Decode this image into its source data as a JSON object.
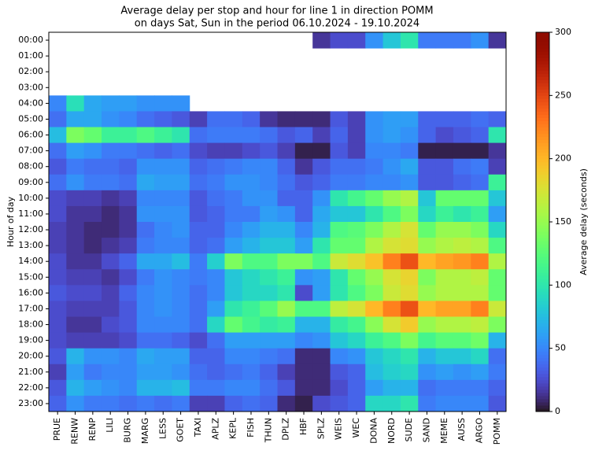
{
  "chart_data": {
    "type": "heatmap",
    "title": "Average delay per stop and hour for line 1 in direction POMM",
    "subtitle": "on days Sat, Sun in the period 06.10.2024 - 19.10.2024",
    "y_label": "Hour of day",
    "colorbar_label": "Average delay (seconds)",
    "colormap": "turbo",
    "clim": [
      0,
      300
    ],
    "cticks": [
      0,
      50,
      100,
      150,
      200,
      250,
      300
    ],
    "x_categories": [
      "PRUE",
      "RENW",
      "RENP",
      "LILI",
      "BURG",
      "MARG",
      "LESS",
      "GOET",
      "TAXI",
      "APLZ",
      "KEPL",
      "FISH",
      "THUN",
      "DPLZ",
      "HBF",
      "SPLZ",
      "WEIS",
      "WEC",
      "DONA",
      "NORD",
      "SUDE",
      "SAND",
      "MEME",
      "AUSS",
      "ARGO",
      "POMM"
    ],
    "y_categories": [
      "00:00",
      "01:00",
      "02:00",
      "03:00",
      "04:00",
      "05:00",
      "06:00",
      "07:00",
      "08:00",
      "09:00",
      "10:00",
      "11:00",
      "12:00",
      "13:00",
      "14:00",
      "15:00",
      "16:00",
      "17:00",
      "18:00",
      "19:00",
      "20:00",
      "21:00",
      "22:00",
      "23:00"
    ],
    "values": [
      [
        null,
        null,
        null,
        null,
        null,
        null,
        null,
        null,
        null,
        null,
        null,
        null,
        null,
        null,
        null,
        15,
        25,
        25,
        55,
        80,
        100,
        45,
        45,
        45,
        55,
        15
      ],
      [
        null,
        null,
        null,
        null,
        null,
        null,
        null,
        null,
        null,
        null,
        null,
        null,
        null,
        null,
        null,
        null,
        null,
        null,
        null,
        null,
        null,
        null,
        null,
        null,
        null,
        null
      ],
      [
        null,
        null,
        null,
        null,
        null,
        null,
        null,
        null,
        null,
        null,
        null,
        null,
        null,
        null,
        null,
        null,
        null,
        null,
        null,
        null,
        null,
        null,
        null,
        null,
        null,
        null
      ],
      [
        null,
        null,
        null,
        null,
        null,
        null,
        null,
        null,
        null,
        null,
        null,
        null,
        null,
        null,
        null,
        null,
        null,
        null,
        null,
        null,
        null,
        null,
        null,
        null,
        null,
        null
      ],
      [
        50,
        95,
        65,
        60,
        60,
        55,
        55,
        55,
        null,
        null,
        null,
        null,
        null,
        null,
        null,
        null,
        null,
        null,
        null,
        null,
        null,
        null,
        null,
        null,
        null,
        null
      ],
      [
        40,
        65,
        65,
        55,
        50,
        40,
        35,
        30,
        20,
        40,
        40,
        35,
        15,
        10,
        10,
        10,
        30,
        20,
        55,
        60,
        60,
        35,
        35,
        35,
        40,
        35
      ],
      [
        75,
        140,
        130,
        110,
        110,
        120,
        110,
        100,
        40,
        45,
        45,
        45,
        40,
        30,
        35,
        20,
        35,
        20,
        55,
        60,
        55,
        35,
        25,
        30,
        35,
        100
      ],
      [
        40,
        60,
        55,
        45,
        45,
        40,
        35,
        40,
        25,
        20,
        20,
        25,
        30,
        20,
        5,
        5,
        30,
        20,
        50,
        50,
        45,
        5,
        5,
        5,
        5,
        15
      ],
      [
        30,
        45,
        40,
        40,
        35,
        55,
        55,
        55,
        35,
        40,
        45,
        50,
        50,
        35,
        15,
        30,
        40,
        40,
        45,
        55,
        65,
        30,
        30,
        40,
        45,
        20
      ],
      [
        40,
        55,
        45,
        45,
        40,
        65,
        60,
        60,
        40,
        45,
        55,
        55,
        50,
        40,
        30,
        35,
        45,
        45,
        50,
        50,
        55,
        30,
        30,
        35,
        40,
        110
      ],
      [
        25,
        20,
        20,
        15,
        20,
        50,
        50,
        50,
        30,
        40,
        45,
        55,
        55,
        35,
        35,
        55,
        100,
        115,
        130,
        150,
        160,
        80,
        130,
        130,
        130,
        80
      ],
      [
        25,
        15,
        15,
        10,
        15,
        55,
        55,
        55,
        30,
        35,
        45,
        45,
        60,
        55,
        35,
        65,
        80,
        80,
        100,
        120,
        140,
        90,
        110,
        100,
        110,
        60
      ],
      [
        20,
        15,
        10,
        10,
        15,
        40,
        50,
        55,
        35,
        35,
        50,
        60,
        70,
        70,
        50,
        70,
        120,
        125,
        140,
        160,
        175,
        130,
        150,
        150,
        140,
        90
      ],
      [
        20,
        15,
        10,
        15,
        20,
        45,
        50,
        50,
        35,
        40,
        60,
        70,
        80,
        80,
        60,
        100,
        130,
        130,
        160,
        175,
        180,
        150,
        160,
        165,
        160,
        120
      ],
      [
        25,
        15,
        15,
        25,
        35,
        65,
        65,
        75,
        45,
        85,
        140,
        120,
        120,
        140,
        140,
        120,
        170,
        180,
        195,
        225,
        245,
        200,
        210,
        215,
        225,
        160
      ],
      [
        25,
        20,
        20,
        15,
        25,
        45,
        55,
        50,
        45,
        50,
        80,
        90,
        100,
        110,
        55,
        60,
        100,
        130,
        150,
        175,
        185,
        140,
        160,
        160,
        165,
        130
      ],
      [
        30,
        25,
        25,
        20,
        35,
        50,
        55,
        50,
        40,
        50,
        80,
        90,
        90,
        100,
        25,
        60,
        100,
        120,
        140,
        170,
        180,
        150,
        160,
        160,
        160,
        130
      ],
      [
        25,
        20,
        20,
        20,
        30,
        50,
        55,
        50,
        40,
        60,
        100,
        110,
        125,
        150,
        120,
        120,
        165,
        175,
        200,
        225,
        245,
        200,
        210,
        210,
        225,
        170
      ],
      [
        25,
        15,
        15,
        25,
        30,
        50,
        50,
        50,
        40,
        90,
        130,
        115,
        105,
        110,
        70,
        70,
        105,
        115,
        145,
        175,
        190,
        150,
        160,
        160,
        165,
        140
      ],
      [
        25,
        20,
        20,
        20,
        25,
        40,
        40,
        35,
        25,
        40,
        60,
        60,
        60,
        60,
        50,
        55,
        80,
        90,
        110,
        120,
        140,
        115,
        125,
        125,
        135,
        70
      ],
      [
        30,
        70,
        55,
        55,
        50,
        65,
        60,
        60,
        35,
        35,
        50,
        50,
        45,
        40,
        10,
        10,
        50,
        55,
        80,
        90,
        100,
        70,
        80,
        80,
        90,
        40
      ],
      [
        20,
        60,
        45,
        50,
        50,
        60,
        60,
        55,
        40,
        35,
        40,
        45,
        35,
        20,
        10,
        10,
        30,
        35,
        75,
        85,
        90,
        55,
        60,
        55,
        60,
        45
      ],
      [
        30,
        70,
        60,
        55,
        50,
        70,
        70,
        75,
        45,
        45,
        50,
        50,
        40,
        30,
        10,
        10,
        25,
        35,
        60,
        70,
        70,
        40,
        45,
        45,
        45,
        35
      ],
      [
        35,
        55,
        45,
        45,
        40,
        45,
        40,
        45,
        20,
        20,
        35,
        40,
        35,
        10,
        5,
        25,
        30,
        35,
        90,
        90,
        100,
        45,
        50,
        50,
        50,
        30
      ]
    ]
  }
}
